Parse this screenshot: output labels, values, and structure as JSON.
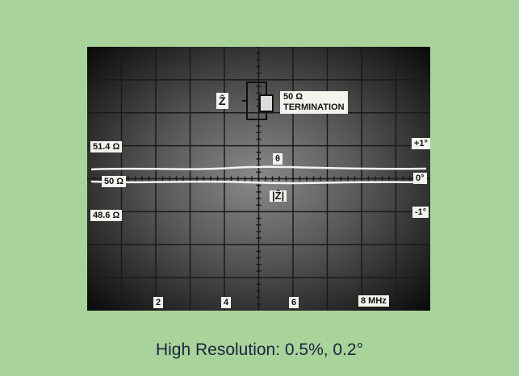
{
  "screen": {
    "left_labels": [
      "51.4 Ω",
      "50 Ω",
      "48.6 Ω"
    ],
    "right_labels": [
      "+1°",
      "0°",
      "-1°"
    ],
    "trace_labels": [
      "θ",
      "|Ẑ|"
    ],
    "x_labels": [
      "2",
      "4",
      "6",
      "8 MHz"
    ],
    "diagram": {
      "symbol": "Ẑ",
      "value": "50 Ω",
      "label": "TERMINATION"
    }
  },
  "caption": "High Resolution: 0.5%, 0.2°"
}
